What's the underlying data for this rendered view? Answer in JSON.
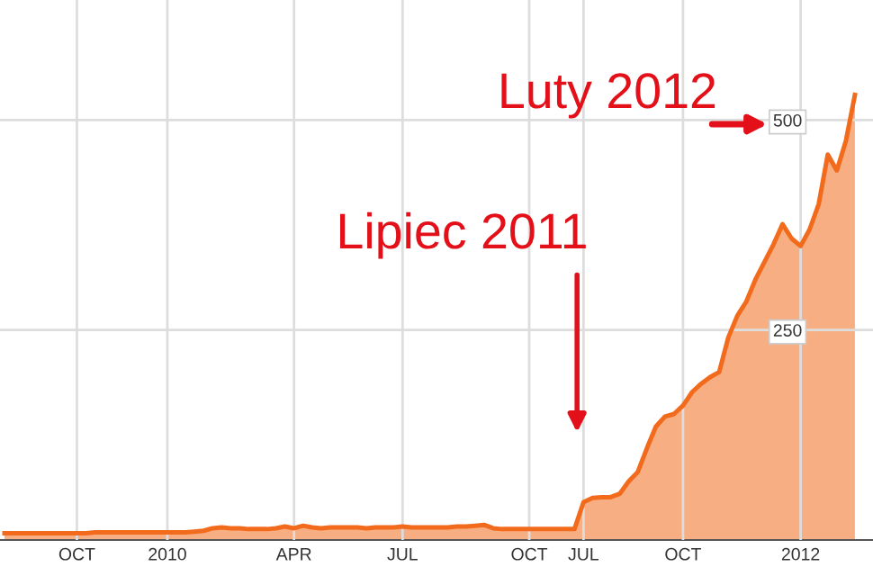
{
  "chart_data": {
    "type": "area",
    "categories": [
      null,
      null,
      null,
      null,
      null,
      null,
      null,
      null,
      "OCT",
      null,
      null,
      null,
      null,
      null,
      null,
      null,
      null,
      null,
      "2010",
      null,
      null,
      null,
      null,
      null,
      null,
      null,
      null,
      null,
      null,
      null,
      null,
      null,
      "APR",
      null,
      null,
      null,
      null,
      null,
      null,
      null,
      null,
      null,
      null,
      null,
      "JUL",
      null,
      null,
      null,
      null,
      null,
      null,
      null,
      null,
      null,
      null,
      null,
      null,
      null,
      "OCT",
      null,
      null,
      null,
      null,
      null,
      "JUL",
      null,
      null,
      null,
      null,
      null,
      null,
      null,
      null,
      null,
      null,
      "OCT",
      null,
      null,
      null,
      null,
      null,
      null,
      null,
      null,
      null,
      null,
      null,
      null,
      "2012",
      null,
      null,
      null,
      null,
      null,
      null,
      null,
      null
    ],
    "series": [
      {
        "color": "#f26b1d",
        "values": [
          8,
          8,
          8,
          8,
          8,
          8,
          8,
          8,
          8,
          8,
          9,
          9,
          9,
          9,
          9,
          9,
          9,
          9,
          9,
          9,
          9,
          10,
          11,
          14,
          15,
          14,
          14,
          13,
          13,
          13,
          14,
          16,
          14,
          17,
          15,
          14,
          15,
          15,
          15,
          15,
          14,
          15,
          15,
          15,
          16,
          15,
          15,
          15,
          15,
          15,
          16,
          16,
          17,
          18,
          14,
          13,
          13,
          13,
          13,
          13,
          13,
          13,
          13,
          13,
          45,
          50,
          51,
          51,
          55,
          70,
          81,
          109,
          135,
          147,
          150,
          160,
          176,
          186,
          194,
          200,
          241,
          267,
          284,
          310,
          331,
          352,
          376,
          359,
          350,
          370,
          400,
          459,
          440,
          475,
          530,
          null,
          null
        ]
      }
    ],
    "ylim": [
      0,
      643
    ],
    "yticks": [
      250,
      500
    ],
    "grid": true,
    "annotations": [
      "Luty 2012",
      "Lipiec 2011"
    ]
  }
}
